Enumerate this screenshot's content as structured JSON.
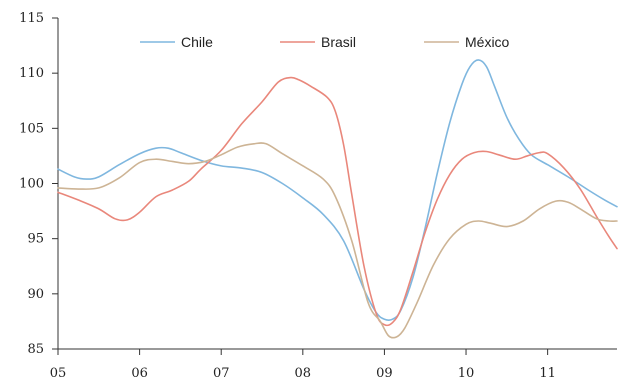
{
  "chart_data": {
    "type": "line",
    "title": "",
    "xlabel": "",
    "ylabel": "",
    "xlim": [
      2005,
      2011.85
    ],
    "ylim": [
      85,
      115
    ],
    "yticks": [
      85,
      90,
      95,
      100,
      105,
      110,
      115
    ],
    "ytick_labels": [
      "85",
      "90",
      "95",
      "100",
      "105",
      "110",
      "115"
    ],
    "xticks": [
      2005,
      2006,
      2007,
      2008,
      2009,
      2010,
      2011
    ],
    "xtick_labels": [
      "05",
      "06",
      "07",
      "08",
      "09",
      "10",
      "11"
    ],
    "grid": false,
    "legend_position": "top",
    "series": [
      {
        "name": "Chile",
        "color": "#7fb7df",
        "x": [
          2005.0,
          2005.2,
          2005.35,
          2005.5,
          2005.75,
          2006.0,
          2006.2,
          2006.35,
          2006.5,
          2006.75,
          2007.0,
          2007.25,
          2007.5,
          2007.75,
          2008.0,
          2008.25,
          2008.5,
          2008.75,
          2008.9,
          2009.0,
          2009.1,
          2009.2,
          2009.35,
          2009.5,
          2009.65,
          2009.8,
          2009.95,
          2010.05,
          2010.15,
          2010.25,
          2010.35,
          2010.5,
          2010.65,
          2010.8,
          2011.0,
          2011.25,
          2011.5,
          2011.7,
          2011.85
        ],
        "values": [
          101.3,
          100.6,
          100.4,
          100.6,
          101.7,
          102.7,
          103.2,
          103.2,
          102.8,
          102.1,
          101.6,
          101.4,
          101.0,
          100.0,
          98.7,
          97.2,
          94.8,
          90.4,
          88.3,
          87.7,
          87.7,
          88.5,
          91.5,
          96.0,
          101.0,
          105.5,
          109.0,
          110.6,
          111.2,
          110.6,
          108.8,
          106.0,
          104.0,
          102.6,
          101.7,
          100.6,
          99.4,
          98.5,
          97.9
        ]
      },
      {
        "name": "Brasil",
        "color": "#e9877b",
        "x": [
          2005.0,
          2005.25,
          2005.5,
          2005.7,
          2005.85,
          2006.0,
          2006.2,
          2006.4,
          2006.6,
          2006.75,
          2007.0,
          2007.25,
          2007.5,
          2007.7,
          2007.85,
          2007.95,
          2008.1,
          2008.3,
          2008.4,
          2008.5,
          2008.6,
          2008.75,
          2008.9,
          2009.0,
          2009.1,
          2009.2,
          2009.35,
          2009.5,
          2009.65,
          2009.8,
          2009.95,
          2010.1,
          2010.25,
          2010.4,
          2010.6,
          2010.75,
          2010.9,
          2011.0,
          2011.2,
          2011.4,
          2011.6,
          2011.75,
          2011.85
        ],
        "values": [
          99.2,
          98.5,
          97.7,
          96.8,
          96.7,
          97.4,
          98.8,
          99.4,
          100.2,
          101.3,
          103.0,
          105.4,
          107.4,
          109.2,
          109.6,
          109.4,
          108.8,
          107.8,
          106.5,
          103.5,
          99.0,
          92.5,
          88.2,
          87.2,
          87.4,
          88.6,
          92.0,
          95.6,
          98.6,
          100.8,
          102.2,
          102.8,
          102.9,
          102.6,
          102.2,
          102.5,
          102.8,
          102.7,
          101.4,
          99.5,
          97.0,
          95.2,
          94.1
        ]
      },
      {
        "name": "México",
        "color": "#cdb495",
        "x": [
          2005.0,
          2005.25,
          2005.5,
          2005.75,
          2006.0,
          2006.2,
          2006.4,
          2006.6,
          2006.8,
          2007.0,
          2007.2,
          2007.4,
          2007.55,
          2007.75,
          2008.0,
          2008.25,
          2008.4,
          2008.6,
          2008.8,
          2008.95,
          2009.05,
          2009.15,
          2009.25,
          2009.4,
          2009.6,
          2009.8,
          2010.0,
          2010.15,
          2010.3,
          2010.5,
          2010.7,
          2010.9,
          2011.1,
          2011.25,
          2011.4,
          2011.6,
          2011.75,
          2011.85
        ],
        "values": [
          99.6,
          99.5,
          99.6,
          100.5,
          101.9,
          102.2,
          102.0,
          101.8,
          102.0,
          102.6,
          103.3,
          103.6,
          103.6,
          102.7,
          101.6,
          100.4,
          98.8,
          94.8,
          89.2,
          87.5,
          86.2,
          86.1,
          86.9,
          89.2,
          92.6,
          95.0,
          96.3,
          96.6,
          96.4,
          96.1,
          96.6,
          97.7,
          98.4,
          98.3,
          97.7,
          96.8,
          96.6,
          96.6
        ]
      }
    ]
  }
}
